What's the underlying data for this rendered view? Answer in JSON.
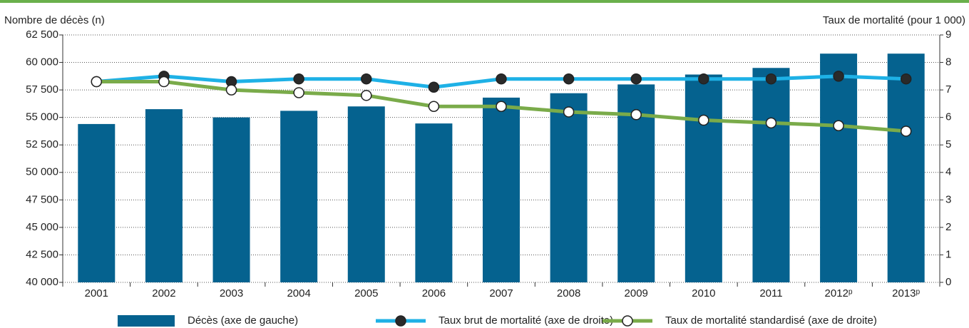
{
  "chart_data": {
    "type": "bar-line",
    "y_label": "Nombre de décès (n)",
    "y2_label": "Taux de mortalité (pour 1 000)",
    "categories": [
      "2001",
      "2002",
      "2003",
      "2004",
      "2005",
      "2006",
      "2007",
      "2008",
      "2009",
      "2010",
      "2011",
      "2012ᵖ",
      "2013ᵖ"
    ],
    "series": [
      {
        "name": "Décès (axe de gauche)",
        "type": "bar",
        "color": "#05628f",
        "values": [
          54400,
          55750,
          55000,
          55600,
          56000,
          54450,
          56800,
          57200,
          58000,
          58900,
          59500,
          60800,
          60800
        ]
      },
      {
        "name": "Taux brut de mortalité (axe de droite)",
        "type": "line",
        "axis": "y2",
        "color": "#1eb1e6",
        "marker_color": "#2a2a2a",
        "values": [
          7.3,
          7.5,
          7.3,
          7.4,
          7.4,
          7.1,
          7.4,
          7.4,
          7.4,
          7.4,
          7.4,
          7.5,
          7.4
        ]
      },
      {
        "name": "Taux de mortalité standardisé (axe de droite)",
        "type": "line",
        "axis": "y2",
        "color": "#7aab4a",
        "marker_color": "#ffffff",
        "values": [
          7.3,
          7.3,
          7.0,
          6.9,
          6.8,
          6.4,
          6.4,
          6.2,
          6.1,
          5.9,
          5.8,
          5.7,
          5.5
        ]
      }
    ],
    "ylim": [
      40000,
      62500
    ],
    "yticks": [
      {
        "value": 40000,
        "label": "40 000"
      },
      {
        "value": 42500,
        "label": "42 500"
      },
      {
        "value": 45000,
        "label": "45 000"
      },
      {
        "value": 47500,
        "label": "47 500"
      },
      {
        "value": 50000,
        "label": "50 000"
      },
      {
        "value": 52500,
        "label": "52 500"
      },
      {
        "value": 55000,
        "label": "55 000"
      },
      {
        "value": 57500,
        "label": "57 500"
      },
      {
        "value": 60000,
        "label": "60 000"
      },
      {
        "value": 62500,
        "label": "62 500"
      }
    ],
    "y2lim": [
      0,
      9
    ],
    "y2ticks": [
      0,
      1,
      2,
      3,
      4,
      5,
      6,
      7,
      8,
      9
    ],
    "grid": true
  }
}
